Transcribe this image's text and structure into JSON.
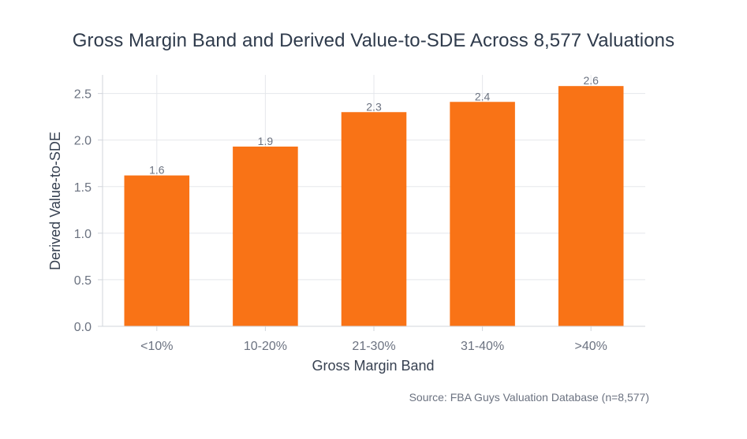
{
  "chart_data": {
    "type": "bar",
    "title": "Gross Margin Band and Derived Value-to-SDE Across 8,577 Valuations",
    "xlabel": "Gross Margin Band",
    "ylabel": "Derived Value-to-SDE",
    "categories": [
      "<10%",
      "10-20%",
      "21-30%",
      "31-40%",
      ">40%"
    ],
    "values": [
      1.62,
      1.93,
      2.3,
      2.41,
      2.58
    ],
    "data_labels": [
      "1.6",
      "1.9",
      "2.3",
      "2.4",
      "2.6"
    ],
    "ylim": [
      0,
      2.7
    ],
    "yticks": [
      0,
      0.5,
      1,
      1.5,
      2,
      2.5
    ],
    "ytick_labels": [
      "0.0",
      "0.5",
      "1.0",
      "1.5",
      "2.0",
      "2.5"
    ],
    "grid": true,
    "bar_color": "#f97316",
    "source": "Source: FBA Guys Valuation Database (n=8,577)"
  }
}
